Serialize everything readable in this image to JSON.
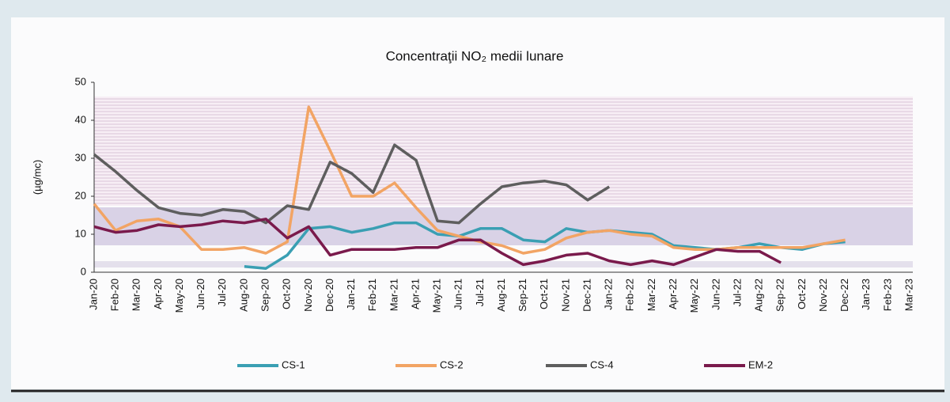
{
  "chart_data": {
    "type": "line",
    "title": "Concentraţii NO₂ medii lunare",
    "y_label": "(µg/mc)",
    "categories": [
      "Jan-20",
      "Feb-20",
      "Mar-20",
      "Apr-20",
      "May-20",
      "Jun-20",
      "Jul-20",
      "Aug-20",
      "Sep-20",
      "Oct-20",
      "Nov-20",
      "Dec-20",
      "Jan-21",
      "Feb-21",
      "Mar-21",
      "Apr-21",
      "May-21",
      "Jun-21",
      "Jul-21",
      "Aug-21",
      "Sep-21",
      "Oct-21",
      "Nov-21",
      "Dec-21",
      "Jan-22",
      "Feb-22",
      "Mar-22",
      "Apr-22",
      "May-22",
      "Jun-22",
      "Jul-22",
      "Aug-22",
      "Sep-22",
      "Oct-22",
      "Nov-22",
      "Dec-22",
      "Jan-23",
      "Feb-23",
      "Mar-23"
    ],
    "series": [
      {
        "name": "CS-1",
        "color": "#3a9fb3",
        "values": [
          null,
          null,
          null,
          null,
          null,
          null,
          null,
          1.5,
          1,
          4.5,
          11.5,
          12,
          10.5,
          11.5,
          13,
          13,
          10,
          9.5,
          11.5,
          11.5,
          8.5,
          8,
          11.5,
          10.5,
          11,
          10.5,
          10,
          7,
          6.5,
          6,
          6.5,
          7.5,
          6.5,
          6,
          7.5,
          8,
          null,
          null,
          null
        ]
      },
      {
        "name": "CS-2",
        "color": "#f2a464",
        "values": [
          18,
          11,
          13.5,
          14,
          12,
          6,
          6,
          6.5,
          5,
          8,
          43.5,
          32,
          20,
          20,
          23.5,
          17,
          11,
          9.5,
          8,
          7,
          5,
          6,
          9,
          10.5,
          11,
          10,
          9.5,
          6.5,
          6,
          6,
          6.5,
          6.5,
          6.5,
          6.5,
          7.5,
          8.5,
          null,
          null,
          null
        ]
      },
      {
        "name": "CS-4",
        "color": "#5e5e5e",
        "values": [
          31,
          26.5,
          21.5,
          17,
          15.5,
          15,
          16.5,
          16,
          13,
          17.5,
          16.5,
          29,
          26,
          21,
          33.5,
          29.5,
          13.5,
          13,
          18,
          22.5,
          23.5,
          24,
          23,
          19,
          22.5,
          null,
          null,
          null,
          null,
          null,
          null,
          null,
          null,
          null,
          null,
          null,
          null,
          null,
          null
        ]
      },
      {
        "name": "EM-2",
        "color": "#7a1a4c",
        "values": [
          12,
          10.5,
          11,
          12.5,
          12,
          12.5,
          13.5,
          13,
          14,
          9,
          12,
          4.5,
          6,
          6,
          6,
          6.5,
          6.5,
          8.5,
          8.5,
          5,
          2,
          3,
          4.5,
          5,
          3,
          2,
          3,
          2,
          4,
          6,
          5.5,
          5.5,
          2.5,
          null,
          null,
          null,
          null,
          null,
          null
        ]
      }
    ],
    "ylim": [
      0,
      50
    ],
    "yticks": [
      0,
      10,
      20,
      30,
      40,
      50
    ]
  }
}
